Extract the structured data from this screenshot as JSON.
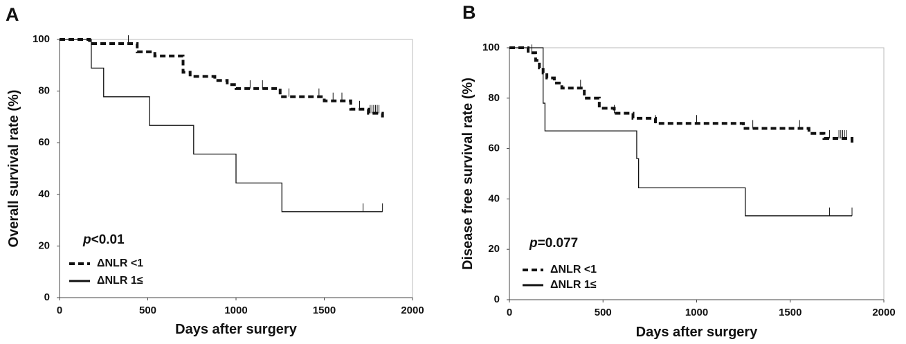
{
  "chart_data": [
    {
      "type": "step",
      "panel_label": "A",
      "xlabel": "Days after surgery",
      "ylabel": "Overall survival rate (%)",
      "annotation": {
        "italic": "p",
        "text": "<0.01"
      },
      "xlim": [
        0,
        2000
      ],
      "xticks": [
        0,
        500,
        1000,
        1500,
        2000
      ],
      "ylim": [
        0,
        100
      ],
      "yticks": [
        0,
        20,
        40,
        60,
        80,
        100
      ],
      "series": [
        {
          "name": "ΔNLR <1",
          "color": "#111111",
          "dashed": true,
          "x": [
            0,
            170,
            440,
            540,
            700,
            740,
            880,
            950,
            1000,
            1250,
            1500,
            1650,
            1750,
            1830
          ],
          "values": [
            100,
            98.4,
            95.2,
            93.6,
            87.3,
            85.7,
            84.1,
            82.5,
            81.0,
            77.8,
            76.2,
            73.0,
            71.4,
            69.8
          ],
          "censored": {
            "x": [
              390,
              1080,
              1150,
              1300,
              1470,
              1550,
              1600,
              1700,
              1760,
              1770,
              1780,
              1790,
              1800,
              1810
            ],
            "values": [
              98.4,
              81.0,
              81.0,
              77.8,
              77.8,
              76.2,
              76.2,
              73.0,
              71.4,
              71.4,
              71.4,
              71.4,
              71.4,
              71.4
            ]
          }
        },
        {
          "name": "ΔNLR 1≤",
          "color": "#111111",
          "dashed": false,
          "x": [
            0,
            180,
            250,
            510,
            760,
            1000,
            1260,
            1830
          ],
          "values": [
            100,
            88.9,
            77.8,
            66.7,
            55.6,
            44.4,
            33.3,
            33.3
          ],
          "censored": {
            "x": [
              1720,
              1830
            ],
            "values": [
              33.3,
              33.3
            ]
          }
        }
      ]
    },
    {
      "type": "step",
      "panel_label": "B",
      "xlabel": "Days after surgery",
      "ylabel": "Disease free survival rate (%)",
      "annotation": {
        "italic": "p",
        "text": "=0.077"
      },
      "xlim": [
        0,
        2000
      ],
      "xticks": [
        0,
        500,
        1000,
        1500,
        2000
      ],
      "ylim": [
        0,
        100
      ],
      "yticks": [
        0,
        20,
        40,
        60,
        80,
        100
      ],
      "series": [
        {
          "name": "ΔNLR <1",
          "color": "#111111",
          "dashed": true,
          "x": [
            0,
            100,
            140,
            160,
            180,
            200,
            240,
            280,
            400,
            480,
            560,
            660,
            780,
            1250,
            1600,
            1680,
            1830
          ],
          "values": [
            100,
            98,
            95,
            92,
            90,
            88,
            86,
            84,
            80,
            76,
            74,
            72,
            70,
            68,
            66,
            64,
            62
          ],
          "censored": {
            "x": [
              120,
              380,
              560,
              780,
              1000,
              1300,
              1550,
              1710,
              1760,
              1770,
              1780,
              1790,
              1800
            ],
            "values": [
              98,
              84,
              74,
              70,
              70,
              68,
              68,
              64,
              64,
              64,
              64,
              64,
              64
            ]
          }
        },
        {
          "name": "ΔNLR 1≤",
          "color": "#111111",
          "dashed": false,
          "x": [
            0,
            160,
            180,
            190,
            670,
            680,
            690,
            1260,
            1830
          ],
          "values": [
            100,
            100,
            78,
            67,
            67,
            56,
            44.4,
            33.3,
            33.3
          ],
          "censored": {
            "x": [
              1710,
              1830
            ],
            "values": [
              33.3,
              33.3
            ]
          }
        }
      ]
    }
  ]
}
